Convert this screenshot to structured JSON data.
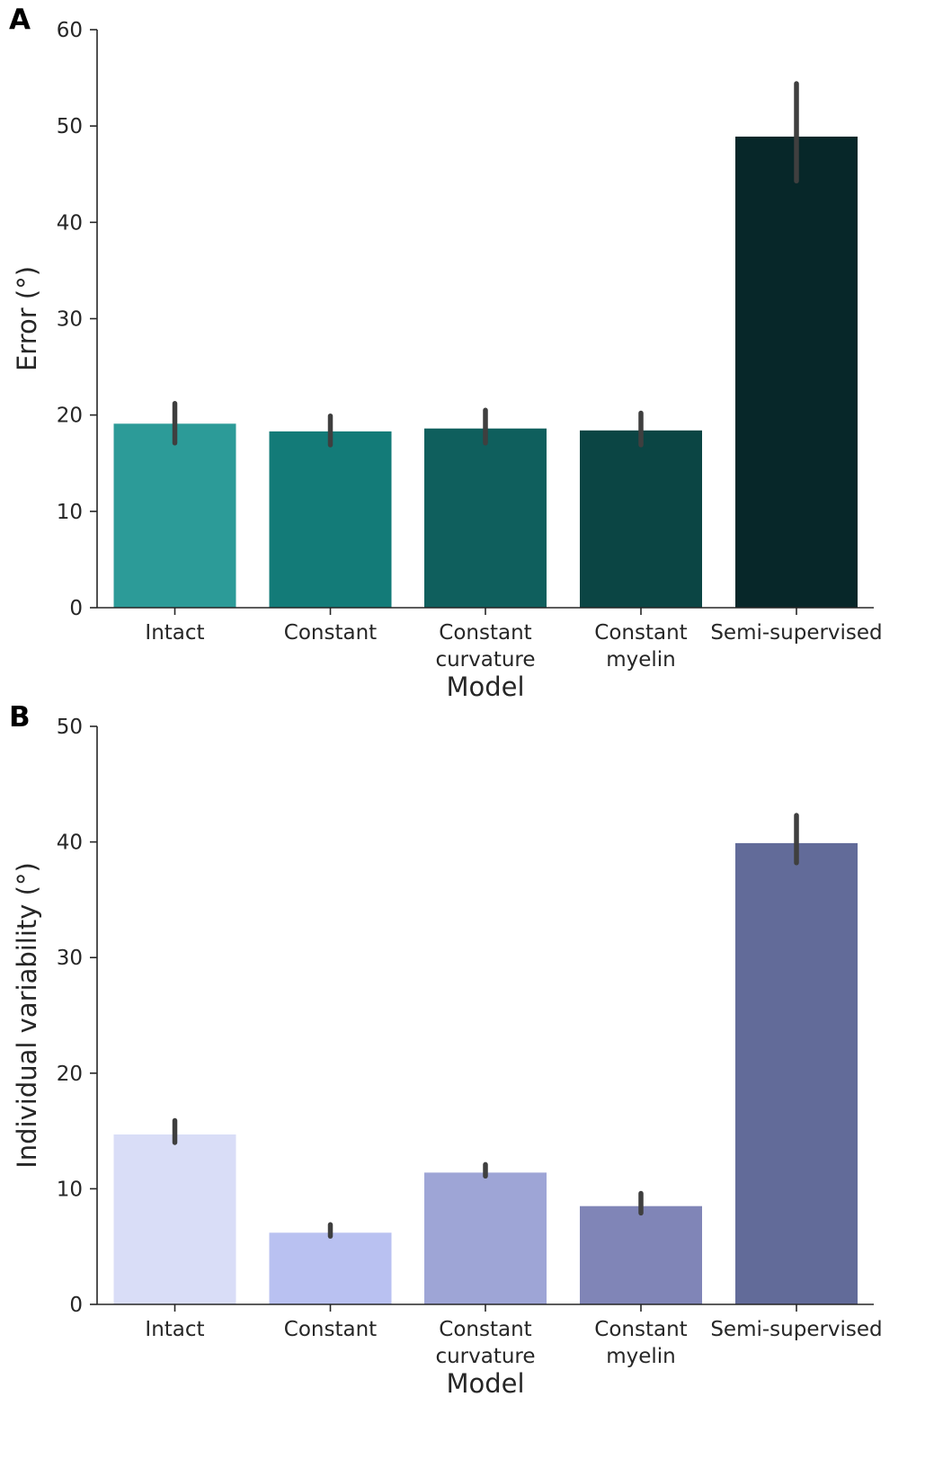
{
  "chart_data": [
    {
      "panel": "A",
      "type": "bar",
      "xlabel": "Model",
      "ylabel": "Error  (°)",
      "ylim": [
        0,
        60
      ],
      "yticks": [
        0,
        10,
        20,
        30,
        40,
        50,
        60
      ],
      "categories": [
        [
          "Intact"
        ],
        [
          "Constant"
        ],
        [
          "Constant",
          "curvature"
        ],
        [
          "Constant",
          "myelin"
        ],
        [
          "Semi-supervised"
        ]
      ],
      "values": [
        19.1,
        18.3,
        18.6,
        18.4,
        48.9
      ],
      "error_low": [
        17.1,
        16.9,
        17.1,
        16.9,
        44.3
      ],
      "error_high": [
        21.2,
        19.9,
        20.5,
        20.2,
        54.4
      ],
      "colors": [
        "#2c9b98",
        "#137b78",
        "#0f5f5d",
        "#0b4544",
        "#072729"
      ]
    },
    {
      "panel": "B",
      "type": "bar",
      "xlabel": "Model",
      "ylabel": "Individual variability  (°)",
      "ylim": [
        0,
        50
      ],
      "yticks": [
        0,
        10,
        20,
        30,
        40,
        50
      ],
      "categories": [
        [
          "Intact"
        ],
        [
          "Constant"
        ],
        [
          "Constant",
          "curvature"
        ],
        [
          "Constant",
          "myelin"
        ],
        [
          "Semi-supervised"
        ]
      ],
      "values": [
        14.7,
        6.2,
        11.4,
        8.5,
        39.9
      ],
      "error_low": [
        14.0,
        5.9,
        11.1,
        7.9,
        38.2
      ],
      "error_high": [
        15.9,
        6.9,
        12.1,
        9.6,
        42.3
      ],
      "colors": [
        "#d9ddf7",
        "#b9c1f1",
        "#9ea5d6",
        "#8085b7",
        "#626b99"
      ]
    }
  ]
}
